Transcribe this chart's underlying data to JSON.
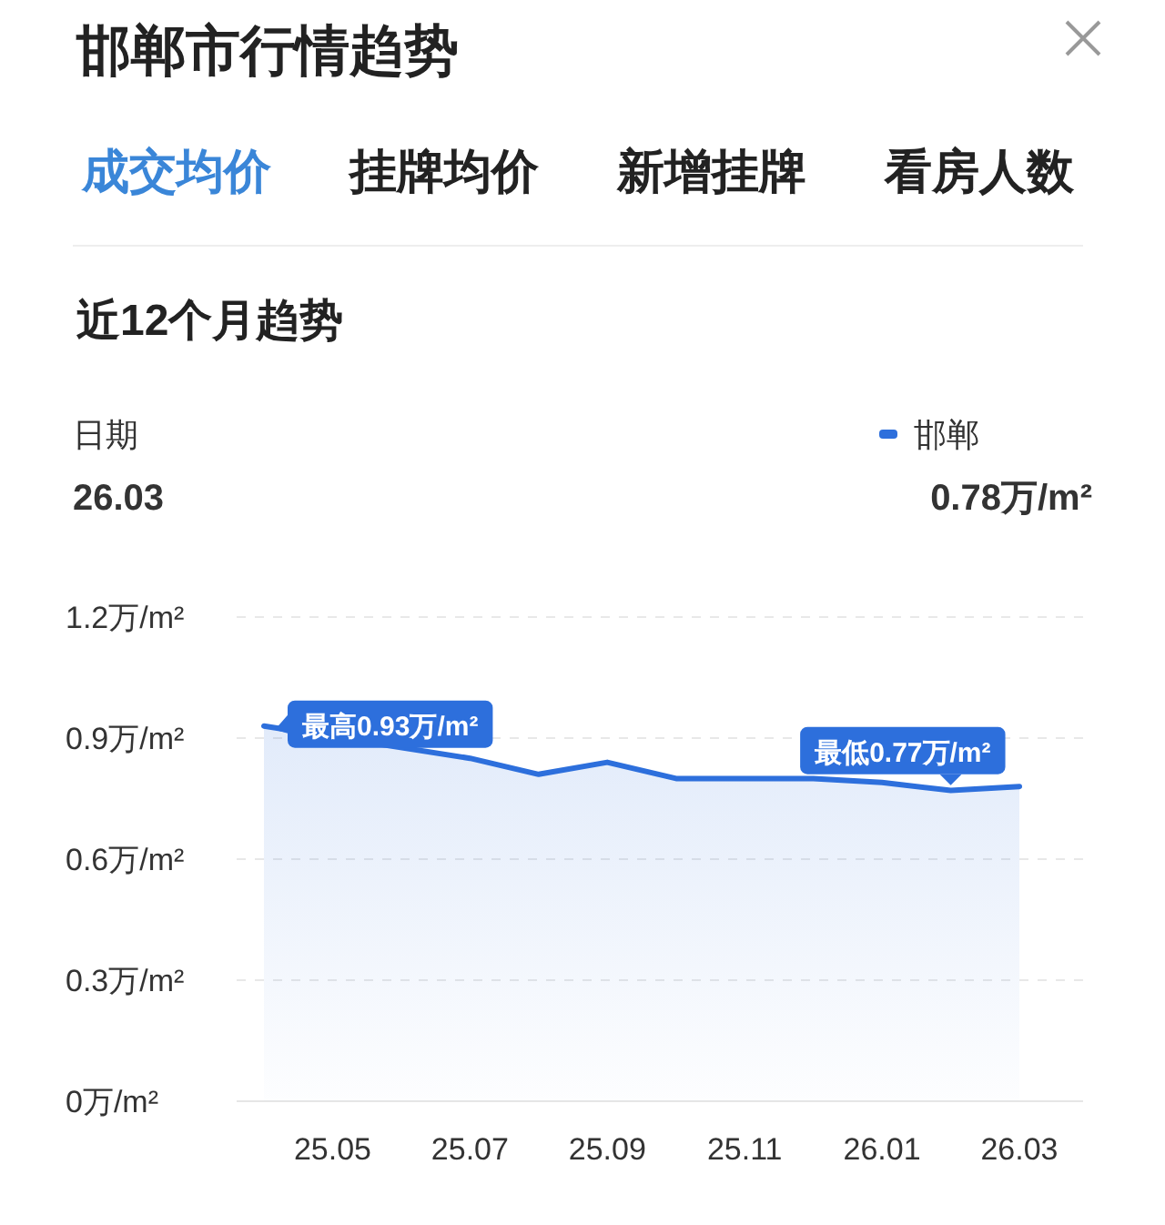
{
  "chart_data": {
    "type": "area",
    "title": "邯郸市行情趋势",
    "subtitle": "近12个月趋势",
    "annotations": [
      "成交均价",
      "挂牌均价",
      "新增挂牌",
      "看房人数",
      "日期",
      "26.03",
      "0.78万/m²",
      "最高0.93万/m²",
      "最低0.77万/m²"
    ],
    "categories": [
      null,
      "25.05",
      null,
      "25.07",
      null,
      "25.09",
      null,
      "25.11",
      null,
      "26.01",
      null,
      "26.03"
    ],
    "series": [
      {
        "name": "邯郸",
        "color": "#2d6fdc",
        "values": [
          0.93,
          null,
          null,
          0.85,
          0.81,
          0.84,
          0.8,
          0.8,
          0.8,
          0.79,
          0.77,
          0.78
        ]
      }
    ],
    "ylim": [
      0,
      1.2
    ],
    "yticks": [
      {
        "value": 0,
        "label": "0万/m²"
      },
      {
        "value": 0.3,
        "label": "0.3万/m²"
      },
      {
        "value": 0.6,
        "label": "0.6万/m²"
      },
      {
        "value": 0.9,
        "label": "0.9万/m²"
      },
      {
        "value": 1.2,
        "label": "1.2万/m²"
      }
    ],
    "grid": "y",
    "legend": "top right"
  }
}
